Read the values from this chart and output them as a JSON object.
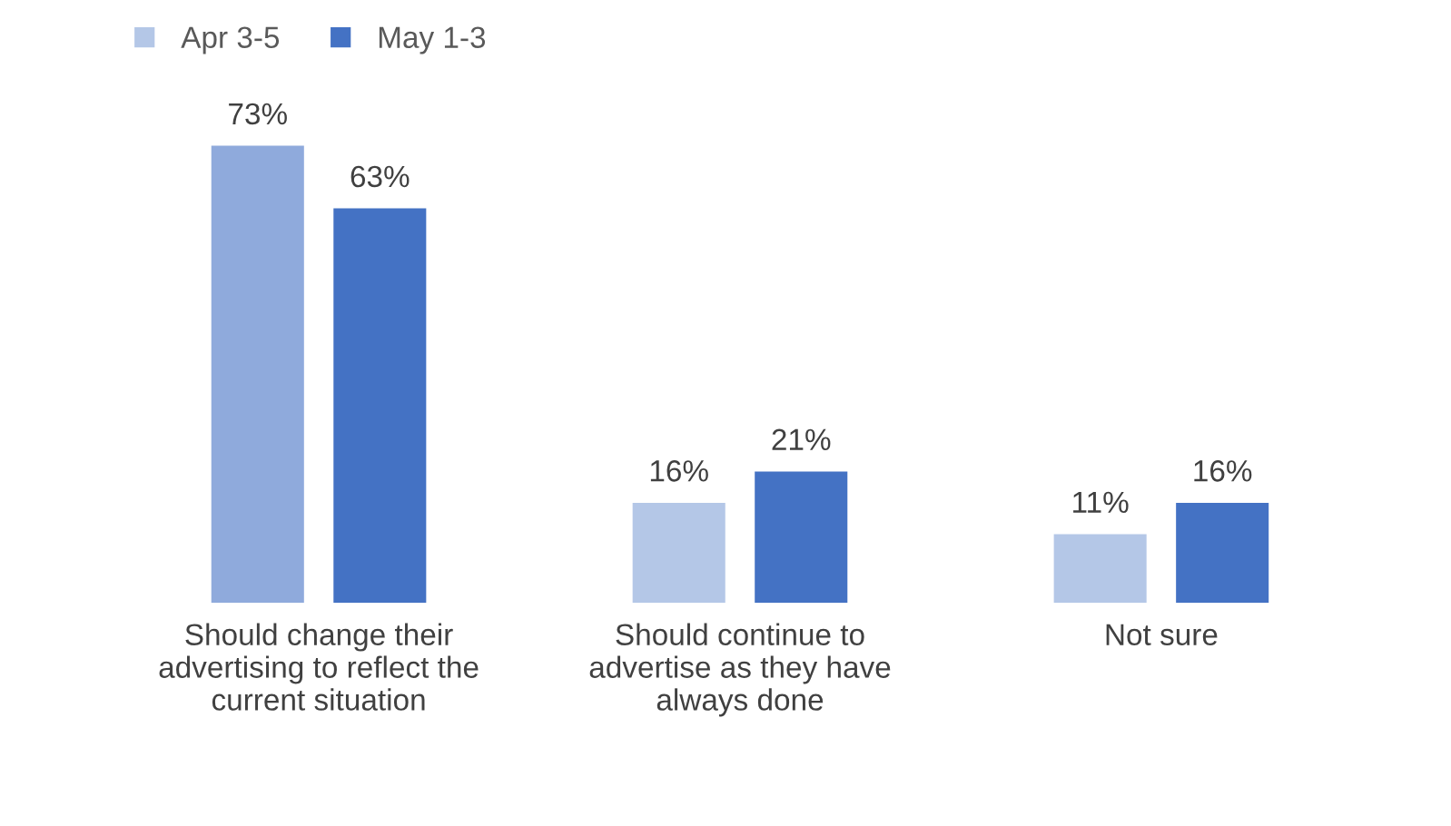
{
  "chart_data": {
    "type": "bar",
    "categories": [
      "Should change their\nadvertising to reflect the\ncurrent situation",
      "Should continue to\nadvertise as they have\nalways done",
      "Not sure"
    ],
    "series": [
      {
        "name": "Apr 3-5",
        "color": "#b4c7e7",
        "colors": [
          "#8faadc",
          "#b4c7e7",
          "#b4c7e7"
        ],
        "values": [
          73,
          16,
          11
        ],
        "value_labels": [
          "73%",
          "16%",
          "11%"
        ]
      },
      {
        "name": "May 1-3",
        "color": "#4472c4",
        "values": [
          63,
          21,
          16
        ],
        "value_labels": [
          "63%",
          "21%",
          "16%"
        ]
      }
    ],
    "legend": "top left",
    "grid": false
  }
}
